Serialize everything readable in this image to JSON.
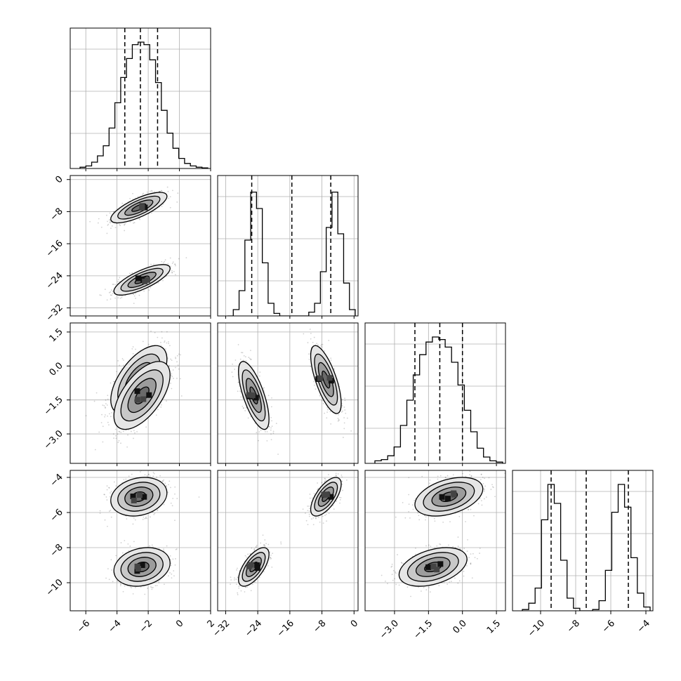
{
  "chart_data": {
    "type": "corner",
    "title": "",
    "parameters": [
      {
        "label": "",
        "range": [
          -7,
          2
        ],
        "ticks": [
          -6,
          -4,
          -2,
          0,
          2
        ],
        "tick_labels": [
          "−6",
          "−4",
          "−2",
          "0",
          "2"
        ],
        "quantiles": [
          -3.5,
          -2.5,
          -1.4
        ],
        "hist": [
          0.01,
          0.02,
          0.05,
          0.1,
          0.18,
          0.32,
          0.52,
          0.72,
          0.87,
          0.98,
          1.0,
          0.98,
          0.86,
          0.68,
          0.46,
          0.28,
          0.16,
          0.08,
          0.04,
          0.02,
          0.01,
          0.005
        ]
      },
      {
        "label": "",
        "range": [
          -34,
          1
        ],
        "ticks": [
          -32,
          -24,
          -16,
          -8,
          0
        ],
        "tick_labels": [
          "−32",
          "−24",
          "−16",
          "−8",
          "0"
        ],
        "quantiles": [
          -25.5,
          -15.5,
          -5.8
        ],
        "hist": [
          0.0,
          0.05,
          0.2,
          0.6,
          0.98,
          0.85,
          0.42,
          0.1,
          0.02,
          0.0,
          0.0,
          0.0,
          0.0,
          0.0,
          0.03,
          0.1,
          0.35,
          0.7,
          0.98,
          0.65,
          0.26,
          0.05
        ]
      },
      {
        "label": "",
        "range": [
          -4.3,
          1.9
        ],
        "ticks": [
          -3.0,
          -1.5,
          0.0,
          1.5
        ],
        "tick_labels": [
          "−3.0",
          "−1.5",
          "0.0",
          "1.5"
        ],
        "quantiles": [
          -2.1,
          -1.0,
          0.0
        ],
        "hist": [
          0.02,
          0.03,
          0.06,
          0.13,
          0.3,
          0.5,
          0.7,
          0.86,
          0.96,
          1.0,
          0.98,
          0.92,
          0.8,
          0.62,
          0.42,
          0.25,
          0.12,
          0.05,
          0.02,
          0.01
        ]
      },
      {
        "label": "",
        "range": [
          -11.6,
          -3.6
        ],
        "ticks": [
          -10,
          -8,
          -6,
          -4
        ],
        "tick_labels": [
          "−10",
          "−8",
          "−6",
          "−4"
        ],
        "quantiles": [
          -9.4,
          -7.4,
          -5.0
        ],
        "hist": [
          0.01,
          0.06,
          0.18,
          0.72,
          1.0,
          0.85,
          0.4,
          0.1,
          0.02,
          0.0,
          0.0,
          0.01,
          0.08,
          0.32,
          0.78,
          1.0,
          0.82,
          0.42,
          0.14,
          0.03
        ]
      }
    ],
    "modes": [
      {
        "mean": [
          -2.6,
          -7.0,
          -0.6,
          -5.1
        ],
        "std": [
          0.9,
          1.9,
          0.75,
          0.55
        ]
      },
      {
        "mean": [
          -2.4,
          -25.0,
          -1.3,
          -9.1
        ],
        "std": [
          0.9,
          1.9,
          0.75,
          0.55
        ]
      }
    ],
    "pair_correlations": {
      "1-0": 0.75,
      "2-0": 0.6,
      "2-1": -0.7,
      "3-0": 0.2,
      "3-1": 0.65,
      "3-2": 0.4
    },
    "contour_levels_sigma": [
      0.5,
      1.0,
      1.5,
      2.0
    ],
    "grid": true,
    "legend": "none"
  }
}
